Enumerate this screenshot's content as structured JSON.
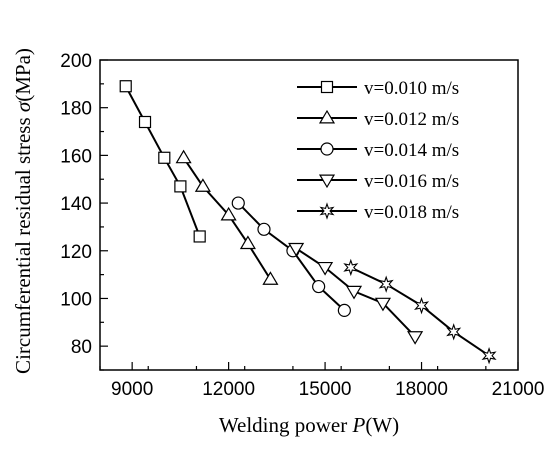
{
  "chart_data": {
    "type": "line",
    "title": "",
    "xlabel": "Welding power P(W)",
    "ylabel": "Circumferential residual stress σ(MPa)",
    "xlabel_parts": {
      "text": "Welding power ",
      "var": "P",
      "unit": "(W)"
    },
    "ylabel_parts": {
      "text": "Circumferential residual stress ",
      "var": "σ",
      "unit": "(MPa)"
    },
    "xlim": [
      8000,
      21000
    ],
    "ylim": [
      70,
      200
    ],
    "xticks": [
      9000,
      12000,
      15000,
      18000,
      21000
    ],
    "yticks": [
      80,
      100,
      120,
      140,
      160,
      180,
      200
    ],
    "grid": false,
    "legend_position": "top-right",
    "series": [
      {
        "name": "v=0.010 m/s",
        "marker": "square",
        "x": [
          8800,
          9400,
          10000,
          10500,
          11100
        ],
        "y": [
          189,
          174,
          159,
          147,
          126
        ]
      },
      {
        "name": "v=0.012 m/s",
        "marker": "triangle-up",
        "x": [
          10600,
          11200,
          12000,
          12600,
          13300
        ],
        "y": [
          159,
          147,
          135,
          123,
          108
        ]
      },
      {
        "name": "v=0.014 m/s",
        "marker": "circle",
        "x": [
          12300,
          13100,
          14000,
          14800,
          15600
        ],
        "y": [
          140,
          129,
          120,
          105,
          95
        ]
      },
      {
        "name": "v=0.016 m/s",
        "marker": "triangle-down",
        "x": [
          14100,
          15000,
          15900,
          16800,
          17800
        ],
        "y": [
          121,
          113,
          103,
          98,
          84
        ]
      },
      {
        "name": "v=0.018 m/s",
        "marker": "star",
        "x": [
          15800,
          16900,
          18000,
          19000,
          20100
        ],
        "y": [
          113,
          106,
          97,
          86,
          76
        ]
      }
    ]
  }
}
